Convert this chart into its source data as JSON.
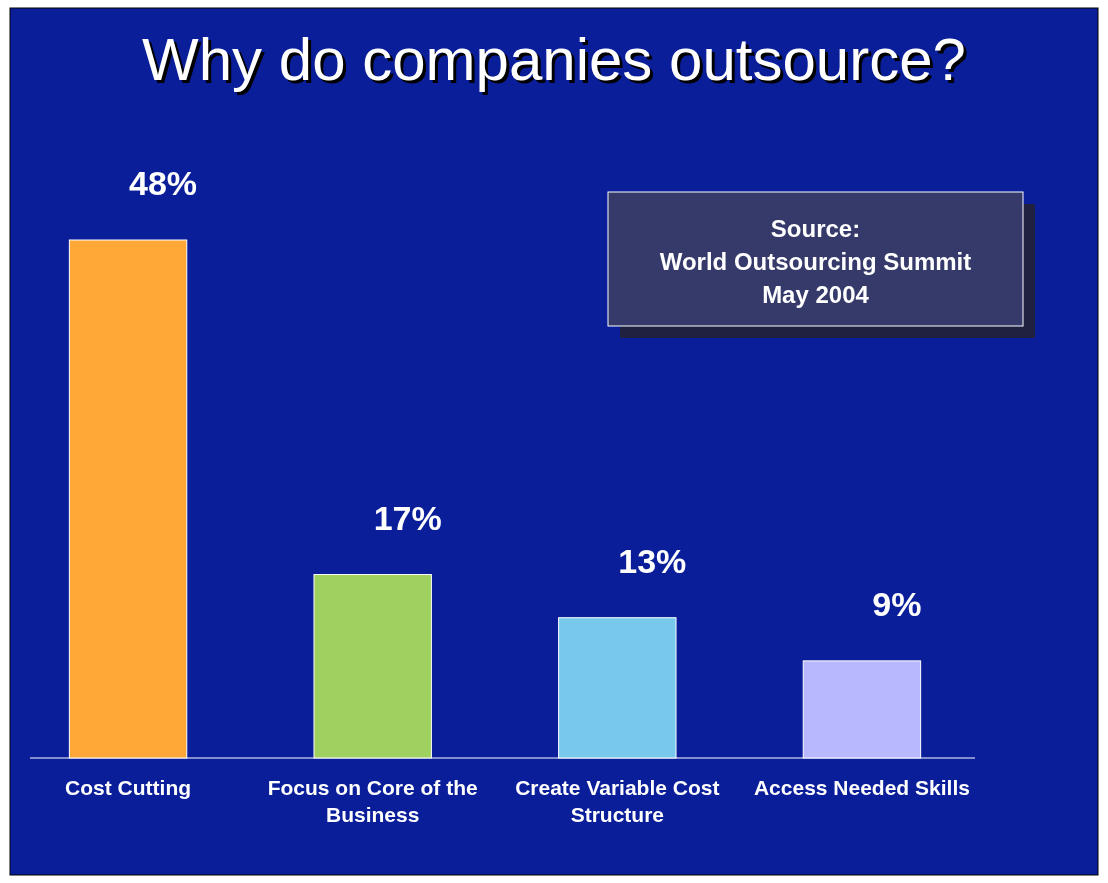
{
  "chart_data": {
    "type": "bar",
    "title": "Why do companies outsource?",
    "categories": [
      "Cost Cutting",
      "Focus on Core of the Business",
      "Create Variable Cost Structure",
      "Access Needed Skills"
    ],
    "values": [
      48,
      17,
      13,
      9
    ],
    "colors": [
      "#ffa838",
      "#a0d060",
      "#78c8ec",
      "#b8b8ff"
    ],
    "value_labels": [
      "48%",
      "17%",
      "13%",
      "9%"
    ],
    "annotations": [
      "Source:\nWorld Outsourcing Summit\nMay 2004"
    ]
  }
}
